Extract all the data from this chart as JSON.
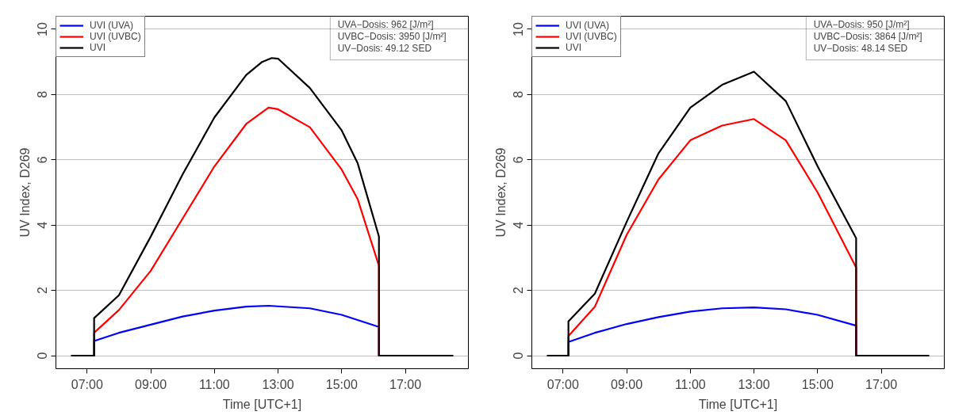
{
  "chart_data": [
    {
      "type": "line",
      "xlabel": "Time [UTC+1]",
      "ylabel": "UV Index, D269",
      "xlim": [
        6.02,
        18.98
      ],
      "ylim": [
        -0.4,
        10.4
      ],
      "xticks": [
        {
          "value": 7,
          "label": "07:00"
        },
        {
          "value": 9,
          "label": "09:00"
        },
        {
          "value": 11,
          "label": "11:00"
        },
        {
          "value": 13,
          "label": "13:00"
        },
        {
          "value": 15,
          "label": "15:00"
        },
        {
          "value": 17,
          "label": "17:00"
        }
      ],
      "yticks": [
        0,
        2,
        4,
        6,
        8,
        10
      ],
      "grid": "y",
      "legend": "top left",
      "marker": "none",
      "line_style": "solid",
      "annotations": [
        "UVA−Dosis: 962 [J/m²]",
        "UVBC−Dosis: 3950 [J/m²]",
        "UV−Dosis: 49.12 SED"
      ],
      "series": [
        {
          "name": "UVI (UVA)",
          "color": "#0000ff",
          "x": [
            6.5,
            7.22,
            7.22,
            8,
            9,
            10,
            11,
            12,
            12.7,
            14,
            15,
            16.17,
            16.17,
            18.5
          ],
          "values": [
            0,
            0,
            0.45,
            0.7,
            0.95,
            1.2,
            1.38,
            1.5,
            1.53,
            1.45,
            1.25,
            0.88,
            0,
            0
          ]
        },
        {
          "name": "UVI (UVBC)",
          "color": "#ff0000",
          "x": [
            6.5,
            7.22,
            7.22,
            8,
            9,
            10,
            11,
            12,
            12.7,
            13,
            14,
            15,
            15.5,
            16.17,
            16.17,
            18.5
          ],
          "values": [
            0,
            0,
            0.7,
            1.4,
            2.6,
            4.2,
            5.8,
            7.1,
            7.6,
            7.55,
            7.0,
            5.7,
            4.8,
            2.75,
            0,
            0
          ]
        },
        {
          "name": "UVI",
          "color": "#000000",
          "x": [
            6.5,
            7.22,
            7.22,
            8,
            9,
            10,
            11,
            12,
            12.5,
            12.8,
            13,
            14,
            15,
            15.5,
            16.17,
            16.17,
            18.5
          ],
          "values": [
            0,
            0,
            1.15,
            1.85,
            3.65,
            5.55,
            7.3,
            8.6,
            9.0,
            9.12,
            9.1,
            8.2,
            6.9,
            5.9,
            3.65,
            0,
            0
          ]
        }
      ]
    },
    {
      "type": "line",
      "xlabel": "Time [UTC+1]",
      "ylabel": "UV Index, D269",
      "xlim": [
        6.02,
        18.98
      ],
      "ylim": [
        -0.4,
        10.4
      ],
      "xticks": [
        {
          "value": 7,
          "label": "07:00"
        },
        {
          "value": 9,
          "label": "09:00"
        },
        {
          "value": 11,
          "label": "11:00"
        },
        {
          "value": 13,
          "label": "13:00"
        },
        {
          "value": 15,
          "label": "15:00"
        },
        {
          "value": 17,
          "label": "17:00"
        }
      ],
      "yticks": [
        0,
        2,
        4,
        6,
        8,
        10
      ],
      "grid": "y",
      "legend": "top left",
      "marker": "none",
      "line_style": "solid",
      "annotations": [
        "UVA−Dosis: 950 [J/m²]",
        "UVBC−Dosis: 3864 [J/m²]",
        "UV−Dosis: 48.14 SED"
      ],
      "series": [
        {
          "name": "UVI (UVA)",
          "color": "#0000ff",
          "x": [
            6.5,
            7.17,
            7.17,
            8,
            9,
            10,
            11,
            12,
            13,
            14,
            15,
            16.21,
            16.21,
            18.5
          ],
          "values": [
            0,
            0,
            0.42,
            0.7,
            0.97,
            1.18,
            1.35,
            1.45,
            1.48,
            1.42,
            1.25,
            0.92,
            0,
            0
          ]
        },
        {
          "name": "UVI (UVBC)",
          "color": "#ff0000",
          "x": [
            6.5,
            7.17,
            7.17,
            8,
            9,
            10,
            11,
            12,
            13,
            14,
            15,
            16.21,
            16.21,
            18.5
          ],
          "values": [
            0,
            0,
            0.6,
            1.5,
            3.7,
            5.4,
            6.6,
            7.05,
            7.25,
            6.6,
            5.0,
            2.7,
            0,
            0
          ]
        },
        {
          "name": "UVI",
          "color": "#000000",
          "x": [
            6.5,
            7.17,
            7.17,
            8,
            9,
            10,
            11,
            12,
            13,
            14,
            15,
            16.21,
            16.21,
            18.5
          ],
          "values": [
            0,
            0,
            1.05,
            1.9,
            4.1,
            6.2,
            7.6,
            8.3,
            8.7,
            7.8,
            5.8,
            3.6,
            0,
            0
          ]
        }
      ]
    }
  ]
}
